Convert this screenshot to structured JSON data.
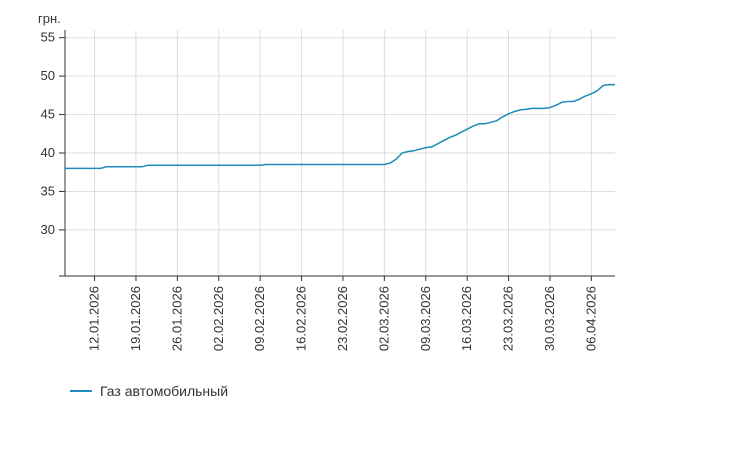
{
  "chart_data": {
    "type": "line",
    "ylabel": "грн.",
    "xlabel": "",
    "ylim": [
      24,
      56
    ],
    "yticks": [
      30,
      35,
      40,
      45,
      50,
      55
    ],
    "x_range": [
      "07.01.2026",
      "10.04.2026"
    ],
    "xticks": [
      "12.01.2026",
      "19.01.2026",
      "26.01.2026",
      "02.02.2026",
      "09.02.2026",
      "16.02.2026",
      "23.02.2026",
      "02.03.2026",
      "09.03.2026",
      "16.03.2026",
      "23.03.2026",
      "30.03.2026",
      "06.04.2026"
    ],
    "grid": true,
    "legend_position": "bottom-left",
    "series": [
      {
        "name": "Газ автомобильный",
        "color": "#1f8bbd",
        "points": [
          [
            "07.01.2026",
            38.0
          ],
          [
            "12.01.2026",
            38.0
          ],
          [
            "13.01.2026",
            38.0
          ],
          [
            "14.01.2026",
            38.2
          ],
          [
            "20.01.2026",
            38.2
          ],
          [
            "21.01.2026",
            38.4
          ],
          [
            "09.02.2026",
            38.4
          ],
          [
            "10.02.2026",
            38.5
          ],
          [
            "02.03.2026",
            38.5
          ],
          [
            "03.03.2026",
            38.7
          ],
          [
            "04.03.2026",
            39.2
          ],
          [
            "05.03.2026",
            40.0
          ],
          [
            "06.03.2026",
            40.2
          ],
          [
            "07.03.2026",
            40.3
          ],
          [
            "08.03.2026",
            40.5
          ],
          [
            "09.03.2026",
            40.7
          ],
          [
            "10.03.2026",
            40.8
          ],
          [
            "11.03.2026",
            41.2
          ],
          [
            "12.03.2026",
            41.6
          ],
          [
            "13.03.2026",
            42.0
          ],
          [
            "14.03.2026",
            42.3
          ],
          [
            "15.03.2026",
            42.7
          ],
          [
            "16.03.2026",
            43.1
          ],
          [
            "17.03.2026",
            43.5
          ],
          [
            "18.03.2026",
            43.8
          ],
          [
            "19.03.2026",
            43.8
          ],
          [
            "20.03.2026",
            44.0
          ],
          [
            "21.03.2026",
            44.2
          ],
          [
            "22.03.2026",
            44.7
          ],
          [
            "23.03.2026",
            45.1
          ],
          [
            "24.03.2026",
            45.4
          ],
          [
            "25.03.2026",
            45.6
          ],
          [
            "26.03.2026",
            45.7
          ],
          [
            "27.03.2026",
            45.8
          ],
          [
            "28.03.2026",
            45.8
          ],
          [
            "29.03.2026",
            45.8
          ],
          [
            "30.03.2026",
            45.9
          ],
          [
            "31.03.2026",
            46.2
          ],
          [
            "01.04.2026",
            46.6
          ],
          [
            "02.04.2026",
            46.7
          ],
          [
            "03.04.2026",
            46.7
          ],
          [
            "04.04.2026",
            47.0
          ],
          [
            "05.04.2026",
            47.4
          ],
          [
            "06.04.2026",
            47.7
          ],
          [
            "07.04.2026",
            48.1
          ],
          [
            "08.04.2026",
            48.8
          ],
          [
            "09.04.2026",
            48.9
          ],
          [
            "10.04.2026",
            48.9
          ]
        ]
      }
    ]
  }
}
